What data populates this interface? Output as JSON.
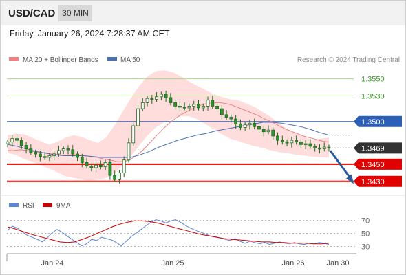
{
  "header": {
    "symbol": "USD/CAD",
    "timeframe": "30 MIN",
    "datetime": "Friday, January 26, 2024 7:28:37 AM CET"
  },
  "legend": {
    "ma20": "MA 20 + Bollinger Bands",
    "ma50": "MA 50",
    "source": "Research © 2024 Trading Central",
    "rsi": "RSI",
    "rsi_ma": "9MA"
  },
  "colors": {
    "bollinger": "#ffd4d4",
    "ma20": "#f08080",
    "ma50": "#4a6fb5",
    "resistance": "#a8d884",
    "pivot": "#2b5fb8",
    "support": "#e00000",
    "current": "#333333",
    "candle": "#2f8f2f",
    "forecast_arrow": "#2a5a9a",
    "rsi": "#5b86d6",
    "rsi_ma": "#cc0000"
  },
  "chart_data": [
    {
      "type": "candlestick",
      "title": "USD/CAD 30 MIN",
      "x_ticks": [
        "Jan 24",
        "Jan 25",
        "Jan 26",
        "Jan 30"
      ],
      "ylim": [
        1.3425,
        1.3565
      ],
      "levels": [
        {
          "value": 1.355,
          "label": "1.3550",
          "role": "resistance"
        },
        {
          "value": 1.353,
          "label": "1.3530",
          "role": "resistance"
        },
        {
          "value": 1.35,
          "label": "1.3500",
          "role": "pivot"
        },
        {
          "value": 1.3469,
          "label": "1.3469",
          "role": "current"
        },
        {
          "value": 1.345,
          "label": "1.3450",
          "role": "support"
        },
        {
          "value": 1.343,
          "label": "1.3430",
          "role": "support"
        }
      ],
      "close": [
        1.3476,
        1.348,
        1.3478,
        1.3472,
        1.3468,
        1.3464,
        1.3462,
        1.3459,
        1.3458,
        1.346,
        1.3462,
        1.3466,
        1.3468,
        1.3467,
        1.3462,
        1.3458,
        1.3452,
        1.3448,
        1.3446,
        1.3449,
        1.3447,
        1.3452,
        1.3437,
        1.3432,
        1.344,
        1.3455,
        1.3475,
        1.3495,
        1.3515,
        1.3522,
        1.3527,
        1.3526,
        1.3529,
        1.3532,
        1.3528,
        1.3522,
        1.3518,
        1.3517,
        1.3516,
        1.3518,
        1.352,
        1.3516,
        1.3518,
        1.3525,
        1.3518,
        1.3515,
        1.3508,
        1.3505,
        1.3503,
        1.3497,
        1.3493,
        1.3496,
        1.3498,
        1.3494,
        1.3491,
        1.3488,
        1.349,
        1.3483,
        1.3478,
        1.3476,
        1.3475,
        1.3478,
        1.3476,
        1.3473,
        1.3474,
        1.3471,
        1.3469,
        1.3468,
        1.347,
        1.3469
      ],
      "ma20": [
        1.3466,
        1.3466,
        1.3467,
        1.3466,
        1.3465,
        1.3464,
        1.3463,
        1.3463,
        1.3461,
        1.346,
        1.3461,
        1.3461,
        1.346,
        1.3459,
        1.3458,
        1.3456,
        1.3455,
        1.3453,
        1.3453,
        1.3455,
        1.346,
        1.3466,
        1.3474,
        1.3482,
        1.349,
        1.3497,
        1.3503,
        1.3508,
        1.3512,
        1.3516,
        1.3519,
        1.3521,
        1.3522,
        1.3522,
        1.3521,
        1.3519,
        1.3516,
        1.3513,
        1.351,
        1.3507,
        1.3503,
        1.35,
        1.3496,
        1.3492,
        1.3489,
        1.3486,
        1.3483,
        1.3481,
        1.3479,
        1.3477,
        1.3476
      ],
      "bb_upper": [
        1.3484,
        1.3486,
        1.3485,
        1.3481,
        1.3477,
        1.3473,
        1.3476,
        1.3481,
        1.3484,
        1.3482,
        1.3478,
        1.3475,
        1.3482,
        1.3496,
        1.3512,
        1.3528,
        1.3542,
        1.3553,
        1.3559,
        1.356,
        1.3558,
        1.3553,
        1.3547,
        1.3542,
        1.3537,
        1.3532,
        1.3529,
        1.3526,
        1.3525,
        1.3521,
        1.3517,
        1.3511,
        1.3505,
        1.3497,
        1.3491,
        1.3486,
        1.3482,
        1.3478,
        1.348,
        1.3481
      ],
      "bb_lower": [
        1.3463,
        1.3461,
        1.3456,
        1.3453,
        1.3449,
        1.3445,
        1.3441,
        1.3436,
        1.3434,
        1.3432,
        1.3431,
        1.3432,
        1.3434,
        1.344,
        1.3449,
        1.346,
        1.3472,
        1.3484,
        1.3493,
        1.3499,
        1.3503,
        1.3506,
        1.3506,
        1.3503,
        1.3497,
        1.3491,
        1.3485,
        1.348,
        1.3477,
        1.3474,
        1.3471,
        1.3469,
        1.3466,
        1.3464,
        1.3463,
        1.3461,
        1.346,
        1.3459,
        1.3458,
        1.3458
      ],
      "ma50": [
        1.3473,
        1.3471,
        1.3468,
        1.3465,
        1.3463,
        1.3461,
        1.346,
        1.346,
        1.346,
        1.3459,
        1.3458,
        1.3458,
        1.3458,
        1.3458,
        1.3461,
        1.3465,
        1.347,
        1.3474,
        1.3478,
        1.3481,
        1.3484,
        1.3486,
        1.3489,
        1.3491,
        1.3493,
        1.3495,
        1.3497,
        1.3499,
        1.3499,
        1.3498,
        1.3496,
        1.3494,
        1.3491,
        1.3487,
        1.3484
      ],
      "forecast": {
        "from": 1.3469,
        "to": 1.3431
      }
    },
    {
      "type": "line",
      "title": "RSI",
      "y_ticks": [
        30,
        50,
        70
      ],
      "ylim": [
        20,
        80
      ],
      "series": [
        {
          "name": "RSI",
          "values": [
            55,
            61,
            58,
            52,
            47,
            44,
            41,
            37,
            43,
            51,
            56,
            52,
            46,
            41,
            36,
            31,
            34,
            41,
            39,
            44,
            42,
            40,
            36,
            31,
            38,
            45,
            50,
            56,
            62,
            67,
            71,
            69,
            66,
            69,
            71,
            67,
            62,
            58,
            55,
            52,
            49,
            46,
            45,
            43,
            41,
            39,
            42,
            38,
            35,
            38,
            36,
            34,
            36,
            33,
            35,
            37,
            35,
            34,
            36,
            34,
            33,
            35,
            34,
            36,
            35,
            33
          ]
        },
        {
          "name": "9MA",
          "values": [
            60,
            57,
            53,
            49,
            46,
            43,
            40,
            37,
            36,
            37,
            41,
            45,
            50,
            55,
            60,
            64,
            67,
            69,
            69,
            68,
            66,
            63,
            60,
            57,
            54,
            51,
            48,
            46,
            44,
            42,
            41,
            40,
            39,
            38,
            37,
            37,
            36,
            36,
            35,
            35,
            35,
            34,
            34,
            35
          ]
        }
      ]
    }
  ]
}
